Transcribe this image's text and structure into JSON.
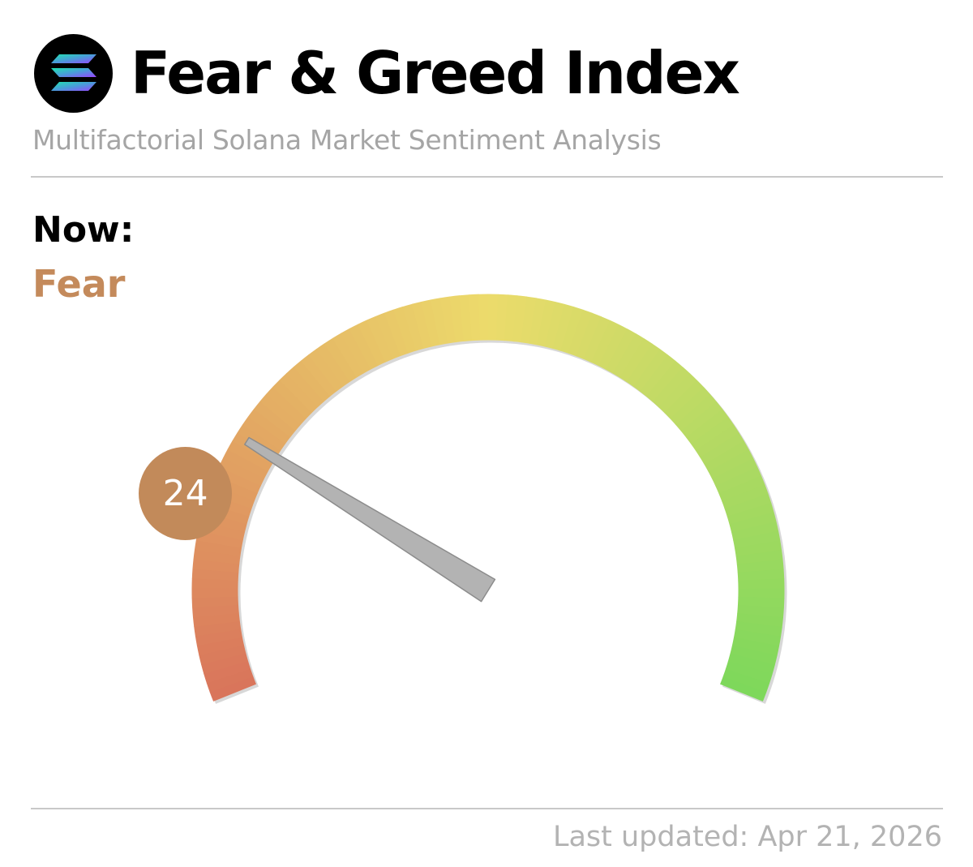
{
  "header": {
    "title": "Fear & Greed Index",
    "subtitle": "Multifactorial Solana Market Sentiment Analysis",
    "logo_icon": "solana-logo-icon"
  },
  "now": {
    "label": "Now:",
    "state": "Fear"
  },
  "footer": {
    "last_updated": "Last updated: Apr 21, 2026"
  },
  "colors": {
    "fear": "#c48a5b",
    "badge": "#c28a5a",
    "needle": "#b3b3b3",
    "gauge_low": "#d9745b",
    "gauge_mid": "#ecdb6b",
    "gauge_high": "#7dd85b"
  },
  "chart_data": {
    "type": "gauge",
    "value": 24,
    "value_label": "24",
    "range": [
      0,
      100
    ],
    "state": "Fear"
  }
}
